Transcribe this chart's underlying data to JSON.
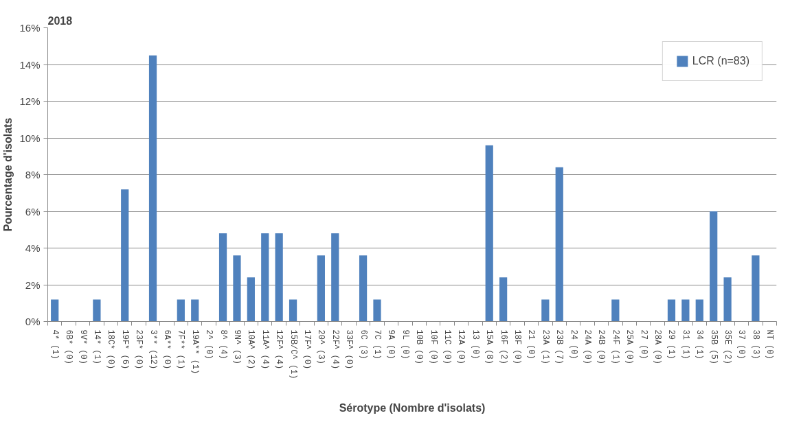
{
  "chart_data": {
    "type": "bar",
    "title": "2018",
    "xlabel": "Sérotype (Nombre d'isolats)",
    "ylabel": "Pourcentage d'isolats",
    "categories": [
      "4* (1)",
      "6B* (0)",
      "9V* (0)",
      "14* (1)",
      "18C* (0)",
      "19F* (6)",
      "23F* (0)",
      "3** (12)",
      "6A** (0)",
      "7F** (1)",
      "19A** (1)",
      "2^ (0)",
      "8^ (4)",
      "9N^ (3)",
      "10A^ (2)",
      "11A^ (4)",
      "12F^ (4)",
      "15B/C^ (1)",
      "17F^ (0)",
      "20^ (3)",
      "22F^ (4)",
      "33F^ (0)",
      "6C (3)",
      "7C (1)",
      "9A (0)",
      "9L (0)",
      "10B (0)",
      "10F (0)",
      "11C (0)",
      "12A (0)",
      "13 (0)",
      "15A (8)",
      "16F (2)",
      "18F (0)",
      "21 (0)",
      "23A (1)",
      "23B (7)",
      "24 (0)",
      "24A (0)",
      "24B (0)",
      "24F (1)",
      "25A (0)",
      "27 (0)",
      "28A (0)",
      "29 (1)",
      "31 (1)",
      "34 (1)",
      "35B (5)",
      "35E (2)",
      "37 (0)",
      "38 (3)",
      "NT (0)"
    ],
    "series": [
      {
        "name": "LCR (n=83)",
        "color": "#4f81bd",
        "values": [
          1.2,
          0,
          0,
          1.2,
          0,
          7.2,
          0,
          14.5,
          0,
          1.2,
          1.2,
          0,
          4.8,
          3.6,
          2.4,
          4.8,
          4.8,
          1.2,
          0,
          3.6,
          4.8,
          0,
          3.6,
          1.2,
          0,
          0,
          0,
          0,
          0,
          0,
          0,
          9.6,
          2.4,
          0,
          0,
          1.2,
          8.4,
          0,
          0,
          0,
          1.2,
          0,
          0,
          0,
          1.2,
          1.2,
          1.2,
          6.0,
          2.4,
          0,
          3.6,
          0
        ]
      }
    ],
    "ylim": [
      0,
      16
    ],
    "yticks": [
      {
        "value": 0,
        "label": "0%"
      },
      {
        "value": 2,
        "label": "2%"
      },
      {
        "value": 4,
        "label": "4%"
      },
      {
        "value": 6,
        "label": "6%"
      },
      {
        "value": 8,
        "label": "8%"
      },
      {
        "value": 10,
        "label": "10%"
      },
      {
        "value": 12,
        "label": "12%"
      },
      {
        "value": 14,
        "label": "14%"
      },
      {
        "value": 16,
        "label": "16%"
      }
    ],
    "grid": "y",
    "legend": "top right"
  }
}
